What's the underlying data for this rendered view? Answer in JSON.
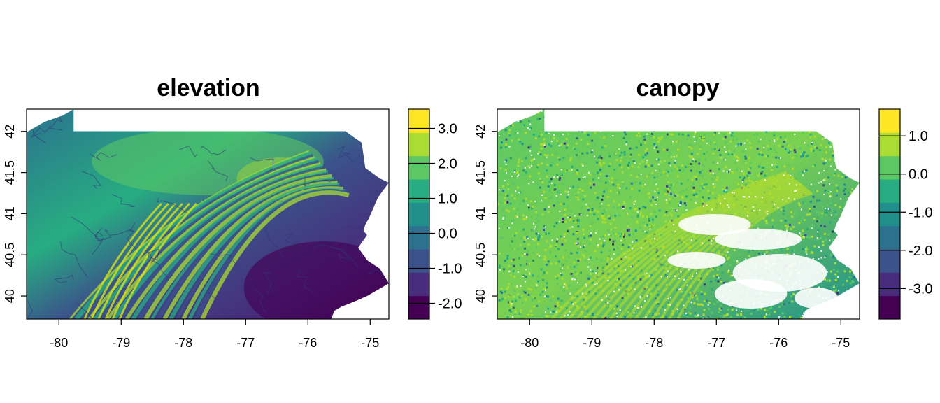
{
  "panels": [
    {
      "title": "elevation",
      "x_ticks": [
        "-80",
        "-79",
        "-78",
        "-77",
        "-76",
        "-75"
      ],
      "y_ticks": [
        "40",
        "40.5",
        "41",
        "41.5",
        "42"
      ],
      "colorbar": {
        "ticks": [
          "-2.0",
          "-1.0",
          "0.0",
          "1.0",
          "2.0",
          "3.0"
        ],
        "colors": [
          "#440154",
          "#472d7b",
          "#3b528b",
          "#2c728e",
          "#21908d",
          "#27ad81",
          "#5cc863",
          "#aadc32",
          "#fde725"
        ]
      }
    },
    {
      "title": "canopy",
      "x_ticks": [
        "-80",
        "-79",
        "-78",
        "-77",
        "-76",
        "-75"
      ],
      "y_ticks": [
        "40",
        "40.5",
        "41",
        "41.5",
        "42"
      ],
      "colorbar": {
        "ticks": [
          "-3.0",
          "-2.0",
          "-1.0",
          "0.0",
          "1.0"
        ],
        "colors": [
          "#440154",
          "#472d7b",
          "#3b528b",
          "#2c728e",
          "#21908d",
          "#27ad81",
          "#5cc863",
          "#aadc32",
          "#fde725"
        ]
      }
    }
  ],
  "chart_data": [
    {
      "type": "heatmap",
      "title": "elevation",
      "xlim": [
        -80.52,
        -74.7
      ],
      "ylim": [
        39.72,
        42.27
      ],
      "colorbar_range": [
        -2.45,
        3.55
      ],
      "colormap": "viridis"
    },
    {
      "type": "heatmap",
      "title": "canopy",
      "xlim": [
        -80.52,
        -74.7
      ],
      "ylim": [
        39.72,
        42.27
      ],
      "colorbar_range": [
        -3.8,
        1.7
      ],
      "colormap": "viridis"
    }
  ]
}
